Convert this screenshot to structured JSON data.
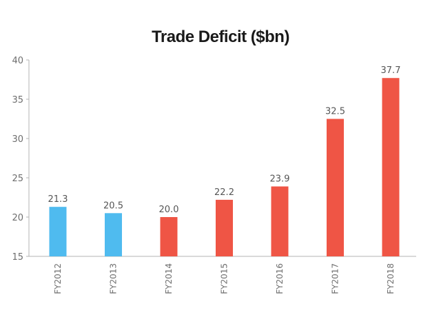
{
  "chart_data": {
    "type": "bar",
    "title": "Trade Deficit ($bn)",
    "xlabel": "",
    "ylabel": "",
    "categories": [
      "FY2012",
      "FY2013",
      "FY2014",
      "FY2015",
      "FY2016",
      "FY2017",
      "FY2018"
    ],
    "values": [
      21.3,
      20.5,
      20.0,
      22.2,
      23.9,
      32.5,
      37.7
    ],
    "data_labels": [
      "21.3",
      "20.5",
      "20.0",
      "22.2",
      "23.9",
      "32.5",
      "37.7"
    ],
    "bar_colors": [
      "#4fbbef",
      "#4fbbef",
      "#ef5545",
      "#ef5545",
      "#ef5545",
      "#ef5545",
      "#ef5545"
    ],
    "ylim": [
      15,
      40
    ],
    "yticks": [
      15,
      20,
      25,
      30,
      35,
      40
    ],
    "grid": false,
    "legend": "none"
  },
  "colors": {
    "axis": "#b3b3b3",
    "blue": "#4fbbef",
    "red": "#ef5545"
  }
}
